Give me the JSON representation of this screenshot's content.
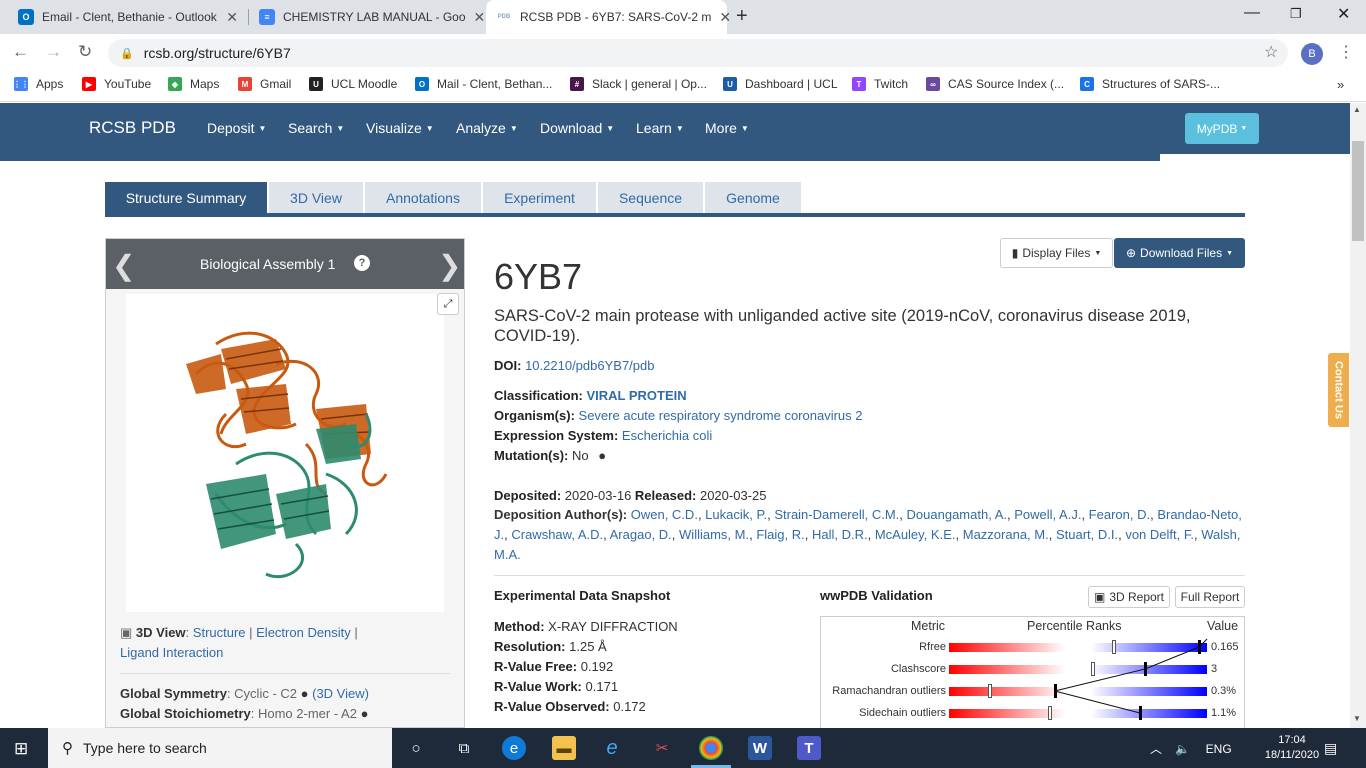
{
  "browser": {
    "tabs": [
      {
        "title": "Email - Clent, Bethanie - Outlook",
        "icon": "outlook-icon",
        "color": "#0072c6",
        "glyph": "O"
      },
      {
        "title": "CHEMISTRY LAB MANUAL - Goo",
        "icon": "docs-icon",
        "color": "#4285f4",
        "glyph": "≡"
      },
      {
        "title": "RCSB PDB - 6YB7: SARS-CoV-2 m",
        "icon": "pdb-icon",
        "color": "#b9c6d6",
        "glyph": "PDB"
      }
    ],
    "url": "rcsb.org/structure/6YB7",
    "profile_initial": "B",
    "bookmarks": [
      {
        "label": "Apps",
        "color": "#4285f4",
        "glyph": "⋮⋮"
      },
      {
        "label": "YouTube",
        "color": "#ff0000",
        "glyph": "▶"
      },
      {
        "label": "Maps",
        "color": "#34a853",
        "glyph": "◆"
      },
      {
        "label": "Gmail",
        "color": "#ea4335",
        "glyph": "M"
      },
      {
        "label": "UCL Moodle",
        "color": "#222222",
        "glyph": "U"
      },
      {
        "label": "Mail - Clent, Bethan...",
        "color": "#0072c6",
        "glyph": "O"
      },
      {
        "label": "Slack | general | Op...",
        "color": "#4a154b",
        "glyph": "#"
      },
      {
        "label": "Dashboard | UCL",
        "color": "#1a5ca8",
        "glyph": "U"
      },
      {
        "label": "Twitch",
        "color": "#9146ff",
        "glyph": "T"
      },
      {
        "label": "CAS Source Index (...",
        "color": "#6a4aa0",
        "glyph": "∞"
      },
      {
        "label": "Structures of SARS-...",
        "color": "#1a73e8",
        "glyph": "C"
      }
    ]
  },
  "site": {
    "brand": "RCSB PDB",
    "nav": [
      "Deposit",
      "Search",
      "Visualize",
      "Analyze",
      "Download",
      "Learn",
      "More"
    ],
    "mypdb": "MyPDB",
    "contact": "Contact Us"
  },
  "page_tabs": [
    "Structure Summary",
    "3D View",
    "Annotations",
    "Experiment",
    "Sequence",
    "Genome"
  ],
  "assembly": {
    "title": "Biological Assembly 1",
    "view3d_label": "3D View",
    "view3d_structure": "Structure",
    "view3d_density": "Electron Density",
    "view3d_ligand": "Ligand Interaction",
    "global_symmetry_label": "Global Symmetry",
    "global_symmetry_value": "Cyclic - C2",
    "global_symmetry_link": "(3D View)",
    "global_stoich_label": "Global Stoichiometry",
    "global_stoich_value": "Homo 2-mer - A2"
  },
  "entry": {
    "display_files": "Display Files",
    "download_files": "Download Files",
    "id": "6YB7",
    "description": "SARS-CoV-2 main protease with unliganded active site (2019-nCoV, coronavirus disease 2019, COVID-19).",
    "doi_label": "DOI:",
    "doi": "10.2210/pdb6YB7/pdb",
    "classification_label": "Classification:",
    "classification": "VIRAL PROTEIN",
    "organism_label": "Organism(s):",
    "organism": "Severe acute respiratory syndrome coronavirus 2",
    "expression_label": "Expression System:",
    "expression": "Escherichia coli",
    "mutation_label": "Mutation(s):",
    "mutation": "No",
    "deposited_label": "Deposited:",
    "deposited": "2020-03-16",
    "released_label": "Released:",
    "released": "2020-03-25",
    "authors_label": "Deposition Author(s):",
    "authors": [
      "Owen, C.D.",
      "Lukacik, P.",
      "Strain-Damerell, C.M.",
      "Douangamath, A.",
      "Powell, A.J.",
      "Fearon, D.",
      "Brandao-Neto, J.",
      "Crawshaw, A.D.",
      "Aragao, D.",
      "Williams, M.",
      "Flaig, R.",
      "Hall, D.R.",
      "McAuley, K.E.",
      "Mazzorana, M.",
      "Stuart, D.I.",
      "von Delft, F.",
      "Walsh, M.A."
    ]
  },
  "snapshot": {
    "title": "Experimental Data Snapshot",
    "method_label": "Method:",
    "method": "X-RAY DIFFRACTION",
    "resolution_label": "Resolution:",
    "resolution": "1.25 Å",
    "rfree_label": "R-Value Free:",
    "rfree": "0.192",
    "rwork_label": "R-Value Work:",
    "rwork": "0.171",
    "robs_label": "R-Value Observed:",
    "robs": "0.172"
  },
  "validation": {
    "title": "wwPDB Validation",
    "report3d": "3D Report",
    "full_report": "Full Report",
    "col_metric": "Metric",
    "col_ranks": "Percentile Ranks",
    "col_value": "Value",
    "rows": [
      {
        "metric": "Rfree",
        "value": "0.165",
        "pct_all": 0.64,
        "pct_res": 0.97
      },
      {
        "metric": "Clashscore",
        "value": "3",
        "pct_all": 0.56,
        "pct_res": 0.76
      },
      {
        "metric": "Ramachandran outliers",
        "value": "0.3%",
        "pct_all": 0.16,
        "pct_res": 0.41
      },
      {
        "metric": "Sidechain outliers",
        "value": "1.1%",
        "pct_all": 0.39,
        "pct_res": 0.74
      }
    ]
  },
  "taskbar": {
    "search_placeholder": "Type here to search",
    "lang": "ENG",
    "time": "17:04",
    "date": "18/11/2020"
  }
}
